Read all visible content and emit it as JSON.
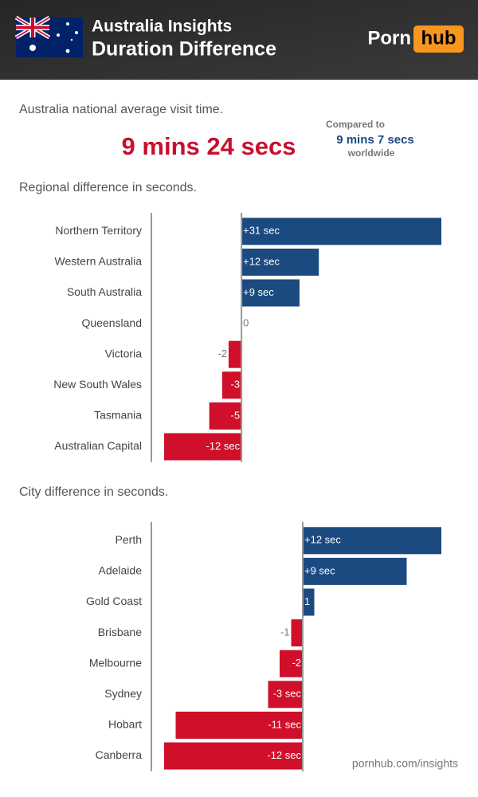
{
  "header": {
    "title": "Australia Insights",
    "subtitle": "Duration Difference",
    "logo": [
      "Porn",
      "hub"
    ]
  },
  "intro": {
    "label": "Australia national average visit time.",
    "average": "9 mins 24 secs",
    "compare_label": "Compared to",
    "compare_value": "9 mins 7 secs",
    "compare_note": "worldwide"
  },
  "chart_data": [
    {
      "type": "bar",
      "orientation": "horizontal",
      "title": "Regional difference in seconds.",
      "categories": [
        "Northern Territory",
        "Western Australia",
        "South Australia",
        "Queensland",
        "Victoria",
        "New South Wales",
        "Tasmania",
        "Australian Capital"
      ],
      "values": [
        31,
        12,
        9,
        0,
        -2,
        -3,
        -5,
        -12
      ],
      "value_labels": [
        "+31 sec",
        "+12 sec",
        "+9 sec",
        "0",
        "-2",
        "-3",
        "-5",
        "-12 sec"
      ],
      "color_positive": "#1b4a80",
      "color_negative": "#d0102b"
    },
    {
      "type": "bar",
      "orientation": "horizontal",
      "title": "City difference in seconds.",
      "categories": [
        "Perth",
        "Adelaide",
        "Gold Coast",
        "Brisbane",
        "Melbourne",
        "Sydney",
        "Hobart",
        "Canberra"
      ],
      "values": [
        12,
        9,
        1,
        -1,
        -2,
        -3,
        -11,
        -12
      ],
      "value_labels": [
        "+12 sec",
        "+9 sec",
        "1",
        "-1",
        "-2",
        "-3 sec",
        "-11 sec",
        "-12 sec"
      ],
      "color_positive": "#1b4a80",
      "color_negative": "#d0102b"
    }
  ],
  "footer": "pornhub.com/insights"
}
